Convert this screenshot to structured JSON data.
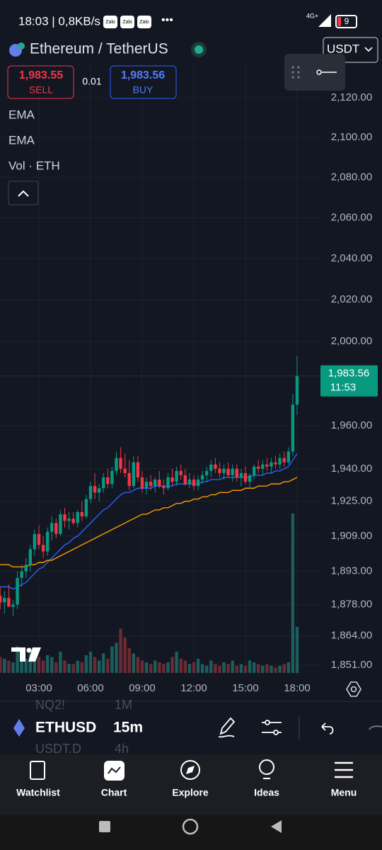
{
  "status_bar": {
    "time": "18:03 | 0,8KB/s",
    "apps": [
      "Zalo",
      "Zalo",
      "Zalo"
    ],
    "more": "•••",
    "network": "4G+",
    "battery": "9"
  },
  "header": {
    "symbol": "Ethereum / TetherUS",
    "currency": "USDT"
  },
  "quote": {
    "sell_price": "1,983.55",
    "sell_label": "SELL",
    "spread": "0.01",
    "buy_price": "1,983.56",
    "buy_label": "BUY"
  },
  "chart": {
    "type": "candlestick",
    "log_scale": true,
    "grid": true,
    "up_color": "#089981",
    "down_color": "#f23645",
    "volume_up_color": "#1b5e5c",
    "volume_down_color": "#6e2a34",
    "xlim": [
      0.74,
      19.44
    ],
    "ylim": [
      1846,
      2137.3
    ],
    "vlim": [
      0,
      10000
    ],
    "yticks": [
      {
        "value": 2120,
        "label": "2,120.00"
      },
      {
        "value": 2100,
        "label": "2,100.00"
      },
      {
        "value": 2080,
        "label": "2,080.00"
      },
      {
        "value": 2060,
        "label": "2,060.00"
      },
      {
        "value": 2040,
        "label": "2,040.00"
      },
      {
        "value": 2020,
        "label": "2,020.00"
      },
      {
        "value": 2000,
        "label": "2,000.00"
      },
      {
        "value": 1960,
        "label": "1,960.00"
      },
      {
        "value": 1940,
        "label": "1,940.00"
      },
      {
        "value": 1925,
        "label": "1,925.00"
      },
      {
        "value": 1909,
        "label": "1,909.00"
      },
      {
        "value": 1893,
        "label": "1,893.00"
      },
      {
        "value": 1878,
        "label": "1,878.00"
      },
      {
        "value": 1864,
        "label": "1,864.00"
      },
      {
        "value": 1851,
        "label": "1,851.00"
      }
    ],
    "xticks": [
      {
        "value": 3,
        "label": "03:00"
      },
      {
        "value": 6,
        "label": "06:00"
      },
      {
        "value": 9,
        "label": "09:00"
      },
      {
        "value": 12,
        "label": "12:00"
      },
      {
        "value": 15,
        "label": "15:00"
      },
      {
        "value": 18,
        "label": "18:00"
      }
    ],
    "last_price": {
      "value": 1983.56,
      "label": "1,983.56",
      "countdown": "11:53"
    },
    "time": [
      0.75,
      1,
      1.25,
      1.5,
      1.75,
      2,
      2.25,
      2.5,
      2.75,
      3,
      3.25,
      3.5,
      3.75,
      4,
      4.25,
      4.5,
      4.75,
      5,
      5.25,
      5.5,
      5.75,
      6,
      6.25,
      6.5,
      6.75,
      7,
      7.25,
      7.5,
      7.75,
      8,
      8.25,
      8.5,
      8.75,
      9,
      9.25,
      9.5,
      9.75,
      10,
      10.25,
      10.5,
      10.75,
      11,
      11.25,
      11.5,
      11.75,
      12,
      12.25,
      12.5,
      12.75,
      13,
      13.25,
      13.5,
      13.75,
      14,
      14.25,
      14.5,
      14.75,
      15,
      15.25,
      15.5,
      15.75,
      16,
      16.25,
      16.5,
      16.75,
      17,
      17.25,
      17.5,
      17.75,
      18
    ],
    "open": [
      1882,
      1879,
      1881,
      1877,
      1878,
      1890,
      1893,
      1896,
      1903,
      1910,
      1905,
      1902,
      1911,
      1915,
      1910,
      1919,
      1916,
      1917,
      1915,
      1920,
      1918,
      1926,
      1932,
      1929,
      1931,
      1936,
      1933,
      1939,
      1945,
      1940,
      1938,
      1932,
      1943,
      1936,
      1931,
      1934,
      1932,
      1935,
      1932,
      1931,
      1936,
      1934,
      1939,
      1937,
      1933,
      1935,
      1932,
      1935,
      1937,
      1939,
      1942,
      1940,
      1938,
      1940,
      1937,
      1940,
      1936,
      1938,
      1934,
      1937,
      1941,
      1940,
      1942,
      1941,
      1943,
      1942,
      1945,
      1943,
      1948,
      1970
    ],
    "high": [
      1886,
      1884,
      1887,
      1880,
      1893,
      1896,
      1899,
      1905,
      1912,
      1914,
      1909,
      1913,
      1918,
      1917,
      1921,
      1922,
      1920,
      1920,
      1921,
      1925,
      1928,
      1934,
      1938,
      1933,
      1938,
      1940,
      1941,
      1948,
      1950,
      1947,
      1944,
      1946,
      1946,
      1939,
      1936,
      1937,
      1936,
      1939,
      1935,
      1938,
      1940,
      1941,
      1942,
      1940,
      1938,
      1937,
      1937,
      1939,
      1941,
      1944,
      1945,
      1943,
      1942,
      1943,
      1942,
      1942,
      1940,
      1941,
      1938,
      1942,
      1944,
      1944,
      1945,
      1945,
      1946,
      1947,
      1948,
      1950,
      1975,
      1993
    ],
    "low": [
      1876,
      1874,
      1878,
      1873,
      1876,
      1886,
      1890,
      1893,
      1900,
      1903,
      1899,
      1900,
      1907,
      1908,
      1909,
      1913,
      1912,
      1914,
      1913,
      1916,
      1917,
      1924,
      1926,
      1925,
      1929,
      1931,
      1931,
      1937,
      1938,
      1936,
      1930,
      1931,
      1934,
      1929,
      1928,
      1930,
      1929,
      1931,
      1928,
      1930,
      1932,
      1932,
      1935,
      1932,
      1931,
      1930,
      1930,
      1933,
      1934,
      1936,
      1938,
      1936,
      1935,
      1936,
      1934,
      1934,
      1932,
      1933,
      1931,
      1935,
      1938,
      1937,
      1939,
      1938,
      1940,
      1940,
      1941,
      1942,
      1946,
      1965
    ],
    "close": [
      1879,
      1881,
      1877,
      1878,
      1890,
      1893,
      1896,
      1903,
      1910,
      1905,
      1902,
      1911,
      1915,
      1910,
      1919,
      1916,
      1917,
      1915,
      1920,
      1918,
      1926,
      1932,
      1929,
      1931,
      1936,
      1933,
      1939,
      1945,
      1940,
      1938,
      1932,
      1943,
      1936,
      1931,
      1934,
      1932,
      1935,
      1932,
      1931,
      1936,
      1934,
      1939,
      1937,
      1933,
      1935,
      1932,
      1935,
      1937,
      1939,
      1942,
      1940,
      1938,
      1940,
      1937,
      1940,
      1936,
      1938,
      1934,
      1937,
      1941,
      1940,
      1942,
      1941,
      1943,
      1942,
      1945,
      1943,
      1948,
      1970,
      1983.56
    ],
    "volume_name": "Vol · ETH",
    "volume": [
      900,
      800,
      700,
      600,
      1500,
      900,
      800,
      1100,
      1300,
      900,
      700,
      1000,
      900,
      600,
      1200,
      700,
      500,
      500,
      700,
      600,
      1000,
      1200,
      900,
      700,
      1100,
      800,
      1500,
      1700,
      2500,
      2000,
      1400,
      1100,
      900,
      700,
      600,
      500,
      700,
      600,
      500,
      600,
      900,
      1200,
      800,
      700,
      500,
      600,
      800,
      500,
      400,
      700,
      500,
      400,
      600,
      500,
      700,
      400,
      500,
      400,
      700,
      600,
      500,
      400,
      500,
      400,
      300,
      400,
      500,
      600,
      9000,
      2600
    ],
    "series": [
      {
        "name": "EMA",
        "color": "#2962ff",
        "values": [
          1886,
          1886,
          1886,
          1885,
          1886,
          1887,
          1888,
          1890,
          1892,
          1894,
          1895,
          1897,
          1899,
          1901,
          1903,
          1905,
          1906,
          1908,
          1909,
          1911,
          1913,
          1915,
          1917,
          1919,
          1921,
          1922,
          1924,
          1926,
          1928,
          1929,
          1929,
          1930,
          1931,
          1931,
          1931,
          1931,
          1932,
          1932,
          1932,
          1932,
          1932,
          1933,
          1933,
          1933,
          1933,
          1933,
          1933,
          1934,
          1934,
          1935,
          1935,
          1935,
          1936,
          1936,
          1936,
          1936,
          1936,
          1936,
          1936,
          1937,
          1937,
          1937,
          1938,
          1938,
          1939,
          1939,
          1940,
          1941,
          1944,
          1947
        ]
      },
      {
        "name": "EMA",
        "color": "#ff9800",
        "values": [
          1896,
          1896,
          1896,
          1895,
          1895,
          1895,
          1895,
          1896,
          1896,
          1897,
          1897,
          1898,
          1898,
          1899,
          1900,
          1901,
          1902,
          1903,
          1904,
          1905,
          1906,
          1907,
          1908,
          1909,
          1910,
          1911,
          1912,
          1913,
          1914,
          1915,
          1916,
          1917,
          1918,
          1919,
          1919,
          1920,
          1921,
          1921,
          1922,
          1922,
          1923,
          1924,
          1924,
          1925,
          1925,
          1926,
          1926,
          1927,
          1927,
          1928,
          1928,
          1929,
          1929,
          1929,
          1930,
          1930,
          1930,
          1931,
          1931,
          1931,
          1932,
          1932,
          1932,
          1933,
          1933,
          1933,
          1934,
          1934,
          1935,
          1936
        ]
      }
    ]
  },
  "toolbar": {
    "symbol": "ETHUSD",
    "interval": "15m",
    "prev_symbol": "NQ2!",
    "prev_interval": "1M",
    "next_symbol": "USDT.D",
    "next_interval": "4h"
  },
  "nav": [
    "Watchlist",
    "Chart",
    "Explore",
    "Ideas",
    "Menu"
  ]
}
